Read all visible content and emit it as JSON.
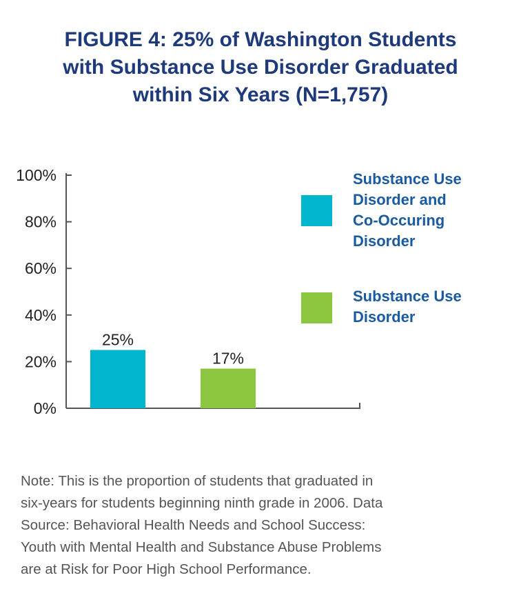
{
  "chart_data": {
    "type": "bar",
    "title_lines": [
      "FIGURE 4: 25% of Washington Students",
      "with Substance Use Disorder Graduated",
      "within Six Years (N=1,757)"
    ],
    "xlabel": "",
    "ylabel": "",
    "ylim": [
      0,
      100
    ],
    "y_ticks": [
      "0%",
      "20%",
      "40%",
      "60%",
      "80%",
      "100%"
    ],
    "y_tick_values": [
      0,
      20,
      40,
      60,
      80,
      100
    ],
    "grid": false,
    "legend_position": "right",
    "series": [
      {
        "name_lines": [
          "Substance Use",
          "Disorder and",
          "Co-Occuring",
          "Disorder"
        ],
        "value": 25,
        "label": "25%",
        "color": "#00b5cc"
      },
      {
        "name_lines": [
          "Substance Use",
          "Disorder"
        ],
        "value": 17,
        "label": "17%",
        "color": "#8cc63f"
      }
    ]
  },
  "note_lines": [
    "Note: This is the proportion of students that graduated in",
    "six-years for students beginning ninth grade in 2006. Data",
    "Source: Behavioral Health Needs and School Success:",
    "Youth with Mental Health and Substance Abuse Problems",
    "are at Risk for Poor High School Performance."
  ]
}
